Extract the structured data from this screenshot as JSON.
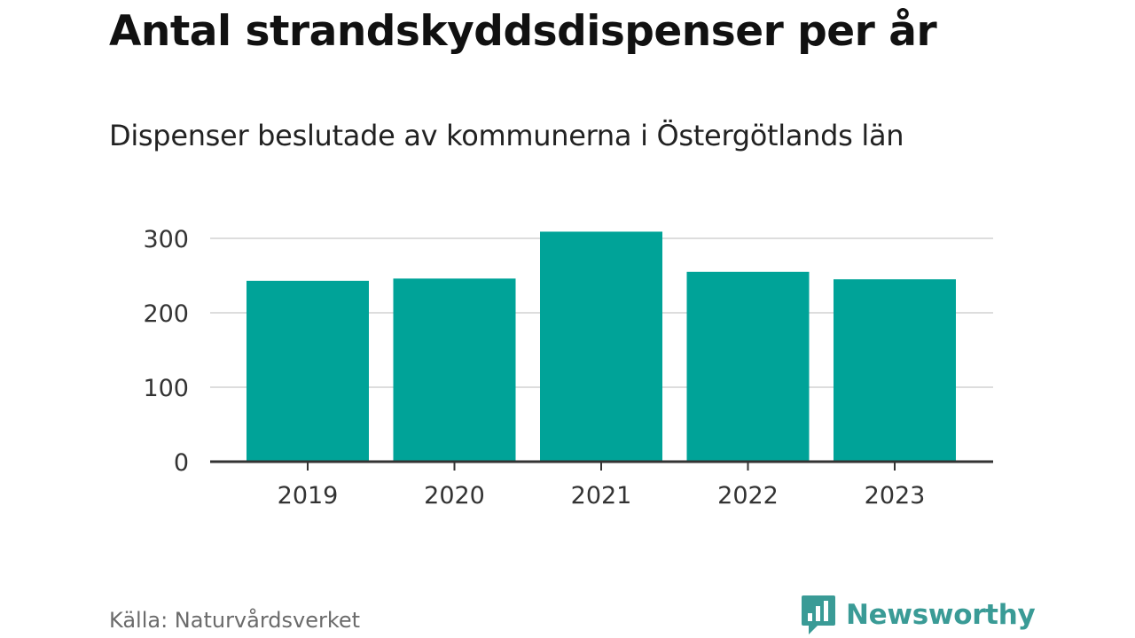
{
  "header": {
    "title": "Antal strandskyddsdispenser per år",
    "subtitle": "Dispenser beslutade av kommunerna i Östergötlands län"
  },
  "footer": {
    "source": "Källa: Naturvårdsverket",
    "brand": "Newsworthy"
  },
  "colors": {
    "bar": "#00a398",
    "grid": "#dddddd",
    "axis": "#333333",
    "brand": "#3a9b96"
  },
  "chart_data": {
    "type": "bar",
    "title": "Antal strandskyddsdispenser per år",
    "subtitle": "Dispenser beslutade av kommunerna i Östergötlands län",
    "xlabel": "",
    "ylabel": "",
    "categories": [
      "2019",
      "2020",
      "2021",
      "2022",
      "2023"
    ],
    "values": [
      243,
      246,
      309,
      255,
      245
    ],
    "ylim": [
      0,
      300
    ],
    "yticks": [
      0,
      100,
      200,
      300
    ],
    "grid": true,
    "legend": "none"
  }
}
